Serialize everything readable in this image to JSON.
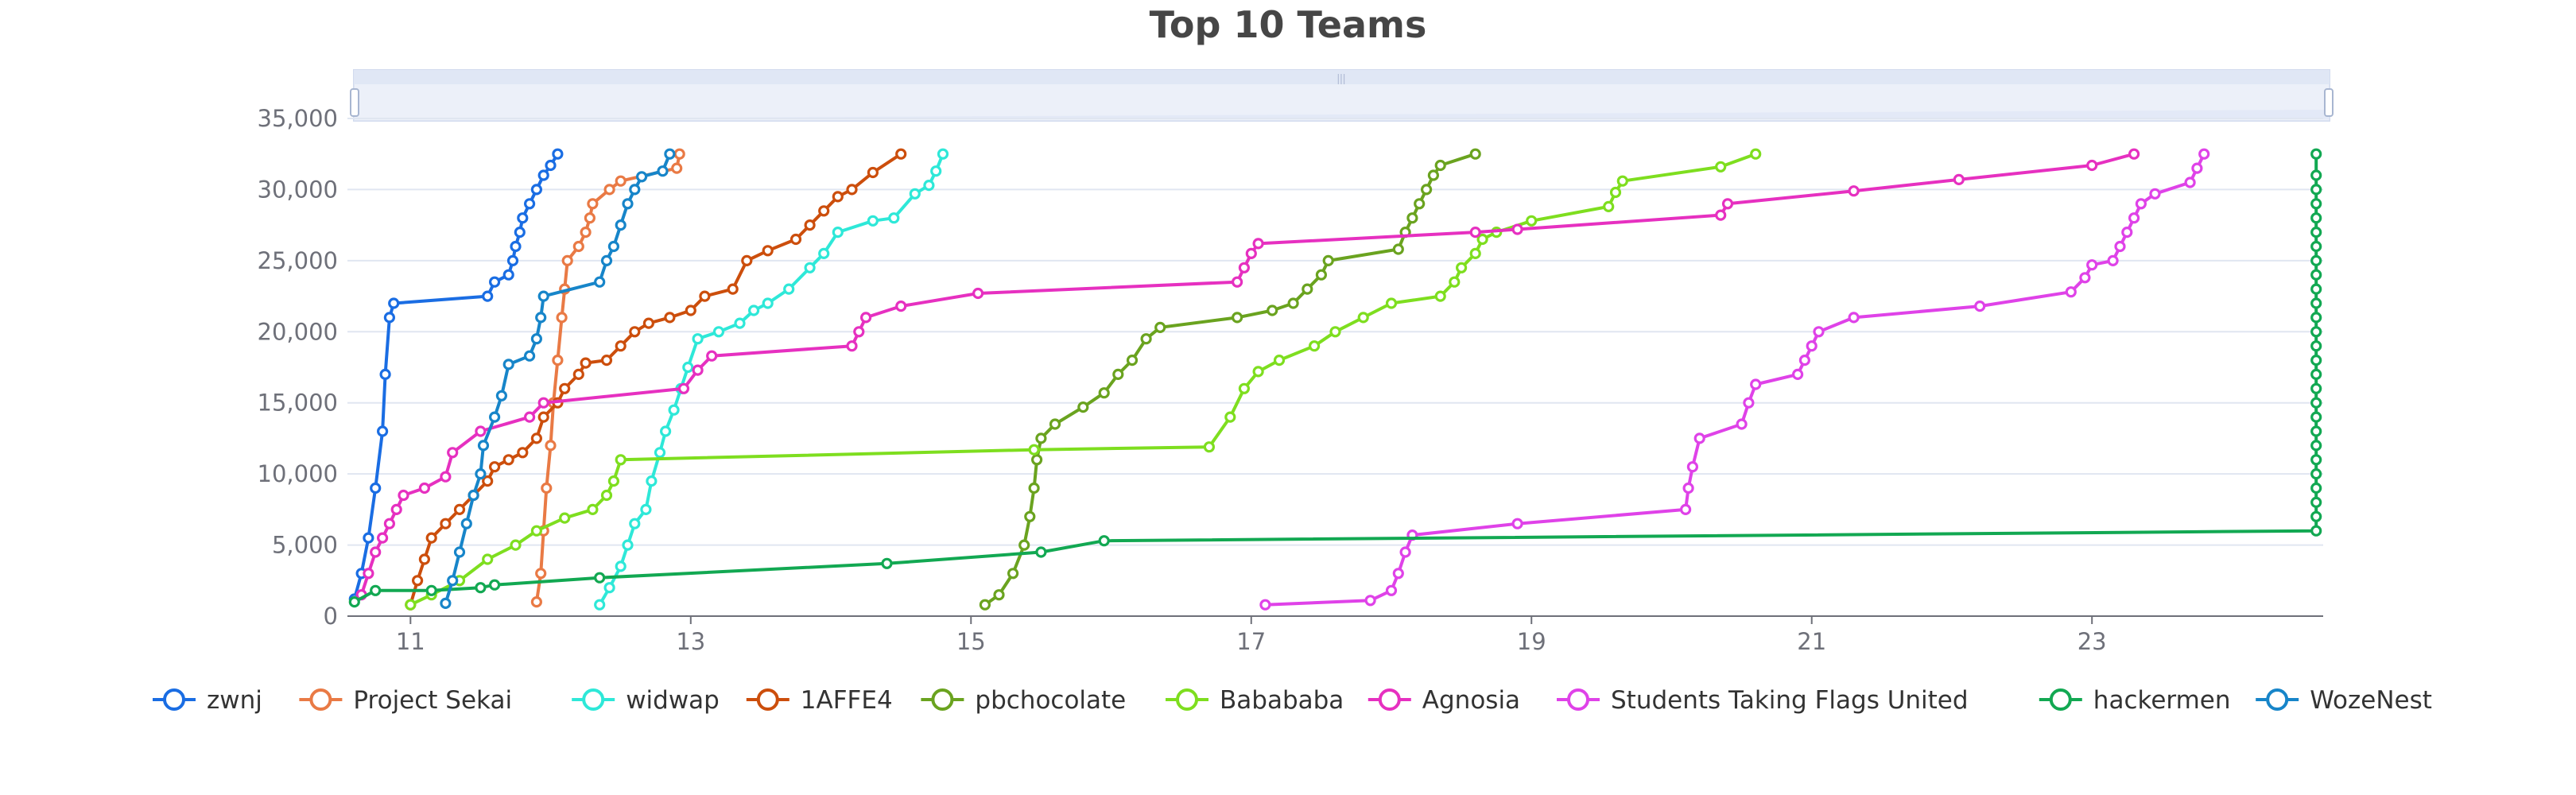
{
  "chart_data": {
    "type": "line",
    "title": "Top 10 Teams",
    "xlabel": "",
    "ylabel": "",
    "xlim": [
      10.55,
      24.65
    ],
    "ylim": [
      0,
      35000
    ],
    "x_ticks": [
      11,
      13,
      15,
      17,
      19,
      21,
      23
    ],
    "y_ticks": [
      0,
      5000,
      10000,
      15000,
      20000,
      25000,
      30000,
      35000
    ],
    "y_tick_labels": [
      "0",
      "5,000",
      "10,000",
      "15,000",
      "20,000",
      "25,000",
      "30,000",
      "35,000"
    ],
    "grid": "horizontal",
    "legend_position": "bottom",
    "data_zoom_slider": "top",
    "series": [
      {
        "name": "zwnj",
        "color": "#1a6de3",
        "points": [
          [
            10.6,
            1200
          ],
          [
            10.65,
            3000
          ],
          [
            10.7,
            5500
          ],
          [
            10.75,
            9000
          ],
          [
            10.8,
            13000
          ],
          [
            10.82,
            17000
          ],
          [
            10.85,
            21000
          ],
          [
            10.88,
            22000
          ],
          [
            11.55,
            22500
          ],
          [
            11.6,
            23500
          ],
          [
            11.7,
            24000
          ],
          [
            11.73,
            25000
          ],
          [
            11.75,
            26000
          ],
          [
            11.78,
            27000
          ],
          [
            11.8,
            28000
          ],
          [
            11.85,
            29000
          ],
          [
            11.9,
            30000
          ],
          [
            11.95,
            31000
          ],
          [
            12.0,
            31700
          ],
          [
            12.05,
            32500
          ]
        ]
      },
      {
        "name": "Project Sekai",
        "color": "#e97a45",
        "points": [
          [
            11.9,
            1000
          ],
          [
            11.93,
            3000
          ],
          [
            11.95,
            6000
          ],
          [
            11.97,
            9000
          ],
          [
            12.0,
            12000
          ],
          [
            12.02,
            15000
          ],
          [
            12.05,
            18000
          ],
          [
            12.08,
            21000
          ],
          [
            12.1,
            23000
          ],
          [
            12.12,
            25000
          ],
          [
            12.2,
            26000
          ],
          [
            12.25,
            27000
          ],
          [
            12.28,
            28000
          ],
          [
            12.3,
            29000
          ],
          [
            12.42,
            30000
          ],
          [
            12.5,
            30600
          ],
          [
            12.9,
            31500
          ],
          [
            12.92,
            32500
          ]
        ]
      },
      {
        "name": "widwap",
        "color": "#2ee8d8",
        "points": [
          [
            12.35,
            800
          ],
          [
            12.42,
            2000
          ],
          [
            12.5,
            3500
          ],
          [
            12.55,
            5000
          ],
          [
            12.6,
            6500
          ],
          [
            12.68,
            7500
          ],
          [
            12.72,
            9500
          ],
          [
            12.78,
            11500
          ],
          [
            12.82,
            13000
          ],
          [
            12.88,
            14500
          ],
          [
            12.93,
            16000
          ],
          [
            12.98,
            17500
          ],
          [
            13.05,
            19500
          ],
          [
            13.2,
            20000
          ],
          [
            13.35,
            20600
          ],
          [
            13.45,
            21500
          ],
          [
            13.55,
            22000
          ],
          [
            13.7,
            23000
          ],
          [
            13.85,
            24500
          ],
          [
            13.95,
            25500
          ],
          [
            14.05,
            27000
          ],
          [
            14.3,
            27800
          ],
          [
            14.45,
            28000
          ],
          [
            14.6,
            29700
          ],
          [
            14.7,
            30300
          ],
          [
            14.75,
            31300
          ],
          [
            14.8,
            32500
          ]
        ]
      },
      {
        "name": "1AFFE4",
        "color": "#cc4e0c",
        "points": [
          [
            11.0,
            800
          ],
          [
            11.05,
            2500
          ],
          [
            11.1,
            4000
          ],
          [
            11.15,
            5500
          ],
          [
            11.25,
            6500
          ],
          [
            11.35,
            7500
          ],
          [
            11.45,
            8500
          ],
          [
            11.55,
            9500
          ],
          [
            11.6,
            10500
          ],
          [
            11.7,
            11000
          ],
          [
            11.8,
            11500
          ],
          [
            11.9,
            12500
          ],
          [
            11.95,
            14000
          ],
          [
            12.05,
            15000
          ],
          [
            12.1,
            16000
          ],
          [
            12.2,
            17000
          ],
          [
            12.25,
            17800
          ],
          [
            12.4,
            18000
          ],
          [
            12.5,
            19000
          ],
          [
            12.6,
            20000
          ],
          [
            12.7,
            20600
          ],
          [
            12.85,
            21000
          ],
          [
            13.0,
            21500
          ],
          [
            13.1,
            22500
          ],
          [
            13.3,
            23000
          ],
          [
            13.4,
            25000
          ],
          [
            13.55,
            25700
          ],
          [
            13.75,
            26500
          ],
          [
            13.85,
            27500
          ],
          [
            13.95,
            28500
          ],
          [
            14.05,
            29500
          ],
          [
            14.15,
            30000
          ],
          [
            14.3,
            31200
          ],
          [
            14.5,
            32500
          ]
        ]
      },
      {
        "name": "pbchocolate",
        "color": "#6aa31f",
        "points": [
          [
            15.1,
            800
          ],
          [
            15.2,
            1500
          ],
          [
            15.3,
            3000
          ],
          [
            15.38,
            5000
          ],
          [
            15.42,
            7000
          ],
          [
            15.45,
            9000
          ],
          [
            15.47,
            11000
          ],
          [
            15.5,
            12500
          ],
          [
            15.6,
            13500
          ],
          [
            15.8,
            14700
          ],
          [
            15.95,
            15700
          ],
          [
            16.05,
            17000
          ],
          [
            16.15,
            18000
          ],
          [
            16.25,
            19500
          ],
          [
            16.35,
            20300
          ],
          [
            16.9,
            21000
          ],
          [
            17.15,
            21500
          ],
          [
            17.3,
            22000
          ],
          [
            17.4,
            23000
          ],
          [
            17.5,
            24000
          ],
          [
            17.55,
            25000
          ],
          [
            18.05,
            25800
          ],
          [
            18.1,
            27000
          ],
          [
            18.15,
            28000
          ],
          [
            18.2,
            29000
          ],
          [
            18.25,
            30000
          ],
          [
            18.3,
            31000
          ],
          [
            18.35,
            31700
          ],
          [
            18.6,
            32500
          ]
        ]
      },
      {
        "name": "Babababa",
        "color": "#7ede1f",
        "points": [
          [
            11.0,
            800
          ],
          [
            11.15,
            1500
          ],
          [
            11.35,
            2500
          ],
          [
            11.55,
            4000
          ],
          [
            11.75,
            5000
          ],
          [
            11.9,
            6000
          ],
          [
            12.1,
            6900
          ],
          [
            12.3,
            7500
          ],
          [
            12.4,
            8500
          ],
          [
            12.45,
            9500
          ],
          [
            12.5,
            11000
          ],
          [
            15.45,
            11700
          ],
          [
            16.7,
            11900
          ],
          [
            16.85,
            14000
          ],
          [
            16.95,
            16000
          ],
          [
            17.05,
            17200
          ],
          [
            17.2,
            18000
          ],
          [
            17.45,
            19000
          ],
          [
            17.6,
            20000
          ],
          [
            17.8,
            21000
          ],
          [
            18.0,
            22000
          ],
          [
            18.35,
            22500
          ],
          [
            18.45,
            23500
          ],
          [
            18.5,
            24500
          ],
          [
            18.6,
            25500
          ],
          [
            18.65,
            26500
          ],
          [
            18.75,
            27000
          ],
          [
            19.0,
            27800
          ],
          [
            19.55,
            28800
          ],
          [
            19.6,
            29800
          ],
          [
            19.65,
            30600
          ],
          [
            20.35,
            31600
          ],
          [
            20.6,
            32500
          ]
        ]
      },
      {
        "name": "Agnosia",
        "color": "#e630c0",
        "points": [
          [
            10.65,
            1500
          ],
          [
            10.7,
            3000
          ],
          [
            10.75,
            4500
          ],
          [
            10.8,
            5500
          ],
          [
            10.85,
            6500
          ],
          [
            10.9,
            7500
          ],
          [
            10.95,
            8500
          ],
          [
            11.1,
            9000
          ],
          [
            11.25,
            9800
          ],
          [
            11.3,
            11500
          ],
          [
            11.5,
            13000
          ],
          [
            11.85,
            14000
          ],
          [
            11.95,
            15000
          ],
          [
            12.95,
            16000
          ],
          [
            13.05,
            17300
          ],
          [
            13.15,
            18300
          ],
          [
            14.15,
            19000
          ],
          [
            14.2,
            20000
          ],
          [
            14.25,
            21000
          ],
          [
            14.5,
            21800
          ],
          [
            15.05,
            22700
          ],
          [
            16.9,
            23500
          ],
          [
            16.95,
            24500
          ],
          [
            17.0,
            25500
          ],
          [
            17.05,
            26200
          ],
          [
            18.6,
            27000
          ],
          [
            18.9,
            27200
          ],
          [
            20.35,
            28200
          ],
          [
            20.4,
            29000
          ],
          [
            21.3,
            29900
          ],
          [
            22.05,
            30700
          ],
          [
            23.0,
            31700
          ],
          [
            23.3,
            32500
          ]
        ]
      },
      {
        "name": "Students Taking Flags United",
        "color": "#df42e8",
        "points": [
          [
            17.1,
            800
          ],
          [
            17.85,
            1100
          ],
          [
            18.0,
            1800
          ],
          [
            18.05,
            3000
          ],
          [
            18.1,
            4500
          ],
          [
            18.15,
            5700
          ],
          [
            18.9,
            6500
          ],
          [
            20.1,
            7500
          ],
          [
            20.12,
            9000
          ],
          [
            20.15,
            10500
          ],
          [
            20.2,
            12500
          ],
          [
            20.5,
            13500
          ],
          [
            20.55,
            15000
          ],
          [
            20.6,
            16300
          ],
          [
            20.9,
            17000
          ],
          [
            20.95,
            18000
          ],
          [
            21.0,
            19000
          ],
          [
            21.05,
            20000
          ],
          [
            21.3,
            21000
          ],
          [
            22.2,
            21800
          ],
          [
            22.85,
            22800
          ],
          [
            22.95,
            23800
          ],
          [
            23.0,
            24700
          ],
          [
            23.15,
            25000
          ],
          [
            23.2,
            26000
          ],
          [
            23.25,
            27000
          ],
          [
            23.3,
            28000
          ],
          [
            23.35,
            29000
          ],
          [
            23.45,
            29700
          ],
          [
            23.7,
            30500
          ],
          [
            23.75,
            31500
          ],
          [
            23.8,
            32500
          ]
        ]
      },
      {
        "name": "hackermen",
        "color": "#12a852",
        "points": [
          [
            10.6,
            1000
          ],
          [
            10.75,
            1800
          ],
          [
            11.15,
            1800
          ],
          [
            11.5,
            2000
          ],
          [
            11.6,
            2200
          ],
          [
            12.35,
            2700
          ],
          [
            14.4,
            3700
          ],
          [
            15.5,
            4500
          ],
          [
            15.95,
            5300
          ],
          [
            24.6,
            6000
          ],
          [
            24.6,
            7000
          ],
          [
            24.6,
            8000
          ],
          [
            24.6,
            9000
          ],
          [
            24.6,
            10000
          ],
          [
            24.6,
            11000
          ],
          [
            24.6,
            12000
          ],
          [
            24.6,
            13000
          ],
          [
            24.6,
            14000
          ],
          [
            24.6,
            15000
          ],
          [
            24.6,
            16000
          ],
          [
            24.6,
            17000
          ],
          [
            24.6,
            18000
          ],
          [
            24.6,
            19000
          ],
          [
            24.6,
            20000
          ],
          [
            24.6,
            21000
          ],
          [
            24.6,
            22000
          ],
          [
            24.6,
            23000
          ],
          [
            24.6,
            24000
          ],
          [
            24.6,
            25000
          ],
          [
            24.6,
            26000
          ],
          [
            24.6,
            27000
          ],
          [
            24.6,
            28000
          ],
          [
            24.6,
            29000
          ],
          [
            24.6,
            30000
          ],
          [
            24.6,
            31000
          ],
          [
            24.6,
            32500
          ]
        ]
      },
      {
        "name": "WozeNest",
        "color": "#1785c9",
        "points": [
          [
            11.25,
            900
          ],
          [
            11.3,
            2500
          ],
          [
            11.35,
            4500
          ],
          [
            11.4,
            6500
          ],
          [
            11.45,
            8500
          ],
          [
            11.5,
            10000
          ],
          [
            11.52,
            12000
          ],
          [
            11.6,
            14000
          ],
          [
            11.65,
            15500
          ],
          [
            11.7,
            17700
          ],
          [
            11.85,
            18300
          ],
          [
            11.9,
            19500
          ],
          [
            11.93,
            21000
          ],
          [
            11.95,
            22500
          ],
          [
            12.35,
            23500
          ],
          [
            12.4,
            25000
          ],
          [
            12.45,
            26000
          ],
          [
            12.5,
            27500
          ],
          [
            12.55,
            29000
          ],
          [
            12.6,
            30000
          ],
          [
            12.65,
            30900
          ],
          [
            12.8,
            31300
          ],
          [
            12.85,
            32500
          ]
        ]
      }
    ]
  }
}
